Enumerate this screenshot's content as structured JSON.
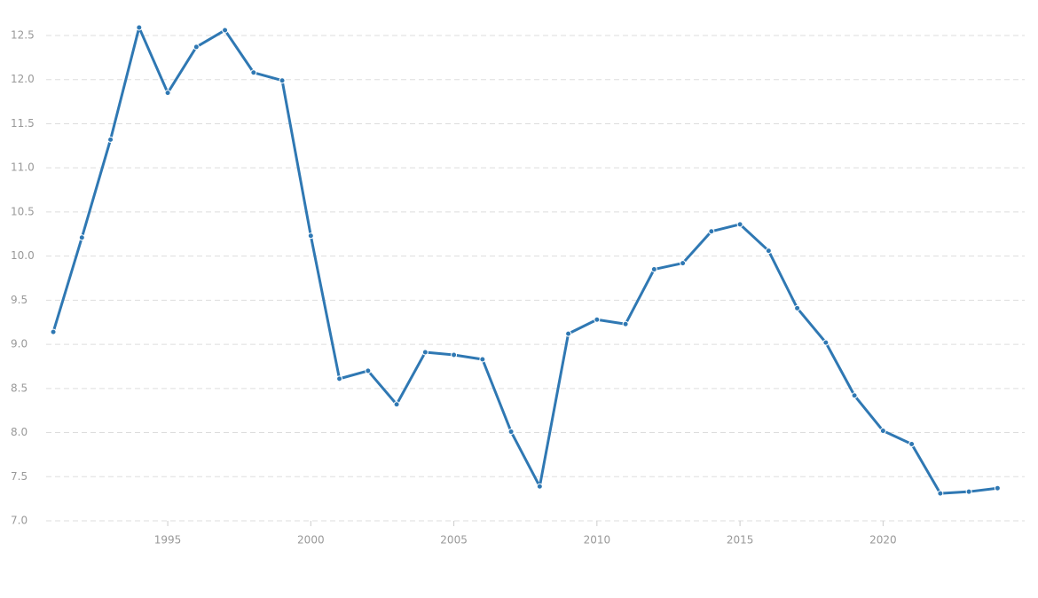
{
  "chart_data": {
    "type": "line",
    "x": [
      1991,
      1992,
      1993,
      1994,
      1995,
      1996,
      1997,
      1998,
      1999,
      2000,
      2001,
      2002,
      2003,
      2004,
      2005,
      2006,
      2007,
      2008,
      2009,
      2010,
      2011,
      2012,
      2013,
      2014,
      2015,
      2016,
      2017,
      2018,
      2019,
      2020,
      2021,
      2022,
      2023,
      2024
    ],
    "series": [
      {
        "color": "#2f78b3",
        "values": [
          9.14,
          10.21,
          11.32,
          12.59,
          11.85,
          12.37,
          12.56,
          12.08,
          11.99,
          10.23,
          8.61,
          8.7,
          8.32,
          8.91,
          8.88,
          8.83,
          8.01,
          7.39,
          9.12,
          9.28,
          9.23,
          9.85,
          9.92,
          10.28,
          10.36,
          10.06,
          9.41,
          9.02,
          8.42,
          8.02,
          7.87,
          7.31,
          7.33,
          7.37
        ]
      }
    ],
    "xlim": [
      1990.75,
      2024.95
    ],
    "xticks": [
      1995,
      2000,
      2005,
      2010,
      2015,
      2020
    ],
    "ylim": [
      7.0,
      12.5
    ],
    "yticks": [
      {
        "value": 7,
        "label": "7.0"
      },
      7.5,
      {
        "value": 8,
        "label": "8.0"
      },
      8.5,
      {
        "value": 9,
        "label": "9.0"
      },
      9.5,
      {
        "value": 10,
        "label": "10.0"
      },
      10.5,
      {
        "value": 11,
        "label": "11.0"
      },
      11.5,
      {
        "value": 12,
        "label": "12.0"
      },
      12.5
    ],
    "grid": true
  }
}
